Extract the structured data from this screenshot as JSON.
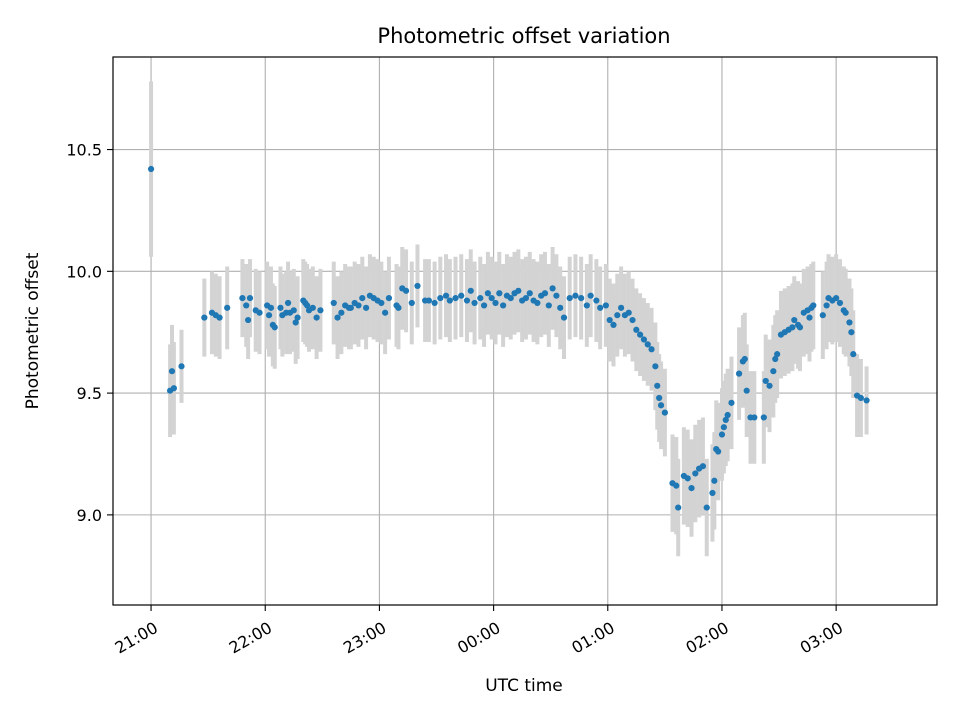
{
  "chart_data": {
    "type": "scatter",
    "title": "Photometric offset variation",
    "xlabel": "UTC time",
    "ylabel": "Photometric offset",
    "x_unit": "UTC time (HH:MM)",
    "xlim": [
      "20:40",
      "03:53"
    ],
    "ylim": [
      8.63,
      10.88
    ],
    "x_ticks": [
      "21:00",
      "22:00",
      "23:00",
      "00:00",
      "01:00",
      "02:00",
      "03:00"
    ],
    "y_ticks": [
      "9.0",
      "9.5",
      "10.0",
      "10.5"
    ],
    "grid": true,
    "error_bars": true,
    "colors": {
      "points": "#1f77b4",
      "error_bars": "#d3d3d3",
      "grid": "#b0b0b0"
    },
    "series": [
      {
        "points": [
          {
            "t": "21:00",
            "y": 10.42,
            "err": 0.36
          },
          {
            "t": "21:10",
            "y": 9.51,
            "err": 0.19
          },
          {
            "t": "21:11",
            "y": 9.59,
            "err": 0.19
          },
          {
            "t": "21:12",
            "y": 9.52,
            "err": 0.19
          },
          {
            "t": "21:16",
            "y": 9.61,
            "err": 0.15
          },
          {
            "t": "21:28",
            "y": 9.81,
            "err": 0.16
          },
          {
            "t": "21:32",
            "y": 9.83,
            "err": 0.17
          },
          {
            "t": "21:34",
            "y": 9.82,
            "err": 0.17
          },
          {
            "t": "21:36",
            "y": 9.81,
            "err": 0.17
          },
          {
            "t": "21:40",
            "y": 9.85,
            "err": 0.17
          },
          {
            "t": "21:48",
            "y": 9.89,
            "err": 0.16
          },
          {
            "t": "21:50",
            "y": 9.86,
            "err": 0.17
          },
          {
            "t": "21:51",
            "y": 9.8,
            "err": 0.16
          },
          {
            "t": "21:52",
            "y": 9.89,
            "err": 0.16
          },
          {
            "t": "21:55",
            "y": 9.84,
            "err": 0.17
          },
          {
            "t": "21:57",
            "y": 9.83,
            "err": 0.17
          },
          {
            "t": "22:01",
            "y": 9.86,
            "err": 0.18
          },
          {
            "t": "22:02",
            "y": 9.82,
            "err": 0.17
          },
          {
            "t": "22:03",
            "y": 9.85,
            "err": 0.17
          },
          {
            "t": "22:04",
            "y": 9.78,
            "err": 0.17
          },
          {
            "t": "22:05",
            "y": 9.77,
            "err": 0.17
          },
          {
            "t": "22:08",
            "y": 9.85,
            "err": 0.17
          },
          {
            "t": "22:09",
            "y": 9.82,
            "err": 0.17
          },
          {
            "t": "22:11",
            "y": 9.83,
            "err": 0.17
          },
          {
            "t": "22:12",
            "y": 9.87,
            "err": 0.17
          },
          {
            "t": "22:13",
            "y": 9.83,
            "err": 0.17
          },
          {
            "t": "22:15",
            "y": 9.84,
            "err": 0.17
          },
          {
            "t": "22:16",
            "y": 9.79,
            "err": 0.17
          },
          {
            "t": "22:17",
            "y": 9.81,
            "err": 0.17
          },
          {
            "t": "22:20",
            "y": 9.88,
            "err": 0.17
          },
          {
            "t": "22:21",
            "y": 9.87,
            "err": 0.17
          },
          {
            "t": "22:22",
            "y": 9.86,
            "err": 0.17
          },
          {
            "t": "22:23",
            "y": 9.84,
            "err": 0.17
          },
          {
            "t": "22:25",
            "y": 9.85,
            "err": 0.17
          },
          {
            "t": "22:27",
            "y": 9.81,
            "err": 0.17
          },
          {
            "t": "22:29",
            "y": 9.84,
            "err": 0.17
          },
          {
            "t": "22:36",
            "y": 9.87,
            "err": 0.17
          },
          {
            "t": "22:38",
            "y": 9.81,
            "err": 0.17
          },
          {
            "t": "22:40",
            "y": 9.83,
            "err": 0.17
          },
          {
            "t": "22:42",
            "y": 9.86,
            "err": 0.17
          },
          {
            "t": "22:44",
            "y": 9.85,
            "err": 0.17
          },
          {
            "t": "22:45",
            "y": 9.85,
            "err": 0.17
          },
          {
            "t": "22:47",
            "y": 9.87,
            "err": 0.17
          },
          {
            "t": "22:49",
            "y": 9.86,
            "err": 0.17
          },
          {
            "t": "22:51",
            "y": 9.89,
            "err": 0.17
          },
          {
            "t": "22:53",
            "y": 9.85,
            "err": 0.17
          },
          {
            "t": "22:55",
            "y": 9.9,
            "err": 0.17
          },
          {
            "t": "22:57",
            "y": 9.89,
            "err": 0.17
          },
          {
            "t": "22:59",
            "y": 9.88,
            "err": 0.17
          },
          {
            "t": "23:01",
            "y": 9.87,
            "err": 0.17
          },
          {
            "t": "23:03",
            "y": 9.83,
            "err": 0.17
          },
          {
            "t": "23:05",
            "y": 9.89,
            "err": 0.17
          },
          {
            "t": "23:09",
            "y": 9.86,
            "err": 0.17
          },
          {
            "t": "23:10",
            "y": 9.85,
            "err": 0.17
          },
          {
            "t": "23:12",
            "y": 9.93,
            "err": 0.17
          },
          {
            "t": "23:14",
            "y": 9.92,
            "err": 0.17
          },
          {
            "t": "23:17",
            "y": 9.87,
            "err": 0.17
          },
          {
            "t": "23:20",
            "y": 9.94,
            "err": 0.17
          },
          {
            "t": "23:24",
            "y": 9.88,
            "err": 0.17
          },
          {
            "t": "23:26",
            "y": 9.88,
            "err": 0.17
          },
          {
            "t": "23:29",
            "y": 9.87,
            "err": 0.17
          },
          {
            "t": "23:32",
            "y": 9.89,
            "err": 0.17
          },
          {
            "t": "23:35",
            "y": 9.9,
            "err": 0.17
          },
          {
            "t": "23:37",
            "y": 9.88,
            "err": 0.17
          },
          {
            "t": "23:40",
            "y": 9.89,
            "err": 0.17
          },
          {
            "t": "23:43",
            "y": 9.9,
            "err": 0.17
          },
          {
            "t": "23:46",
            "y": 9.88,
            "err": 0.17
          },
          {
            "t": "23:48",
            "y": 9.92,
            "err": 0.17
          },
          {
            "t": "23:50",
            "y": 9.87,
            "err": 0.17
          },
          {
            "t": "23:53",
            "y": 9.89,
            "err": 0.17
          },
          {
            "t": "23:55",
            "y": 9.86,
            "err": 0.17
          },
          {
            "t": "23:57",
            "y": 9.91,
            "err": 0.17
          },
          {
            "t": "23:59",
            "y": 9.89,
            "err": 0.17
          },
          {
            "t": "00:01",
            "y": 9.87,
            "err": 0.17
          },
          {
            "t": "00:03",
            "y": 9.91,
            "err": 0.17
          },
          {
            "t": "00:05",
            "y": 9.86,
            "err": 0.17
          },
          {
            "t": "00:07",
            "y": 9.9,
            "err": 0.17
          },
          {
            "t": "00:09",
            "y": 9.89,
            "err": 0.17
          },
          {
            "t": "00:11",
            "y": 9.91,
            "err": 0.17
          },
          {
            "t": "00:13",
            "y": 9.92,
            "err": 0.17
          },
          {
            "t": "00:15",
            "y": 9.88,
            "err": 0.17
          },
          {
            "t": "00:17",
            "y": 9.89,
            "err": 0.17
          },
          {
            "t": "00:19",
            "y": 9.91,
            "err": 0.17
          },
          {
            "t": "00:21",
            "y": 9.88,
            "err": 0.17
          },
          {
            "t": "00:23",
            "y": 9.87,
            "err": 0.17
          },
          {
            "t": "00:25",
            "y": 9.9,
            "err": 0.17
          },
          {
            "t": "00:27",
            "y": 9.91,
            "err": 0.17
          },
          {
            "t": "00:29",
            "y": 9.86,
            "err": 0.17
          },
          {
            "t": "00:31",
            "y": 9.93,
            "err": 0.17
          },
          {
            "t": "00:33",
            "y": 9.9,
            "err": 0.17
          },
          {
            "t": "00:35",
            "y": 9.85,
            "err": 0.17
          },
          {
            "t": "00:37",
            "y": 9.81,
            "err": 0.17
          },
          {
            "t": "00:40",
            "y": 9.89,
            "err": 0.17
          },
          {
            "t": "00:43",
            "y": 9.9,
            "err": 0.17
          },
          {
            "t": "00:46",
            "y": 9.89,
            "err": 0.17
          },
          {
            "t": "00:49",
            "y": 9.86,
            "err": 0.17
          },
          {
            "t": "00:51",
            "y": 9.9,
            "err": 0.17
          },
          {
            "t": "00:54",
            "y": 9.88,
            "err": 0.17
          },
          {
            "t": "00:56",
            "y": 9.85,
            "err": 0.17
          },
          {
            "t": "00:59",
            "y": 9.86,
            "err": 0.17
          },
          {
            "t": "01:01",
            "y": 9.8,
            "err": 0.17
          },
          {
            "t": "01:03",
            "y": 9.78,
            "err": 0.17
          },
          {
            "t": "01:05",
            "y": 9.82,
            "err": 0.17
          },
          {
            "t": "01:07",
            "y": 9.85,
            "err": 0.17
          },
          {
            "t": "01:09",
            "y": 9.82,
            "err": 0.17
          },
          {
            "t": "01:11",
            "y": 9.83,
            "err": 0.17
          },
          {
            "t": "01:13",
            "y": 9.8,
            "err": 0.17
          },
          {
            "t": "01:15",
            "y": 9.76,
            "err": 0.17
          },
          {
            "t": "01:17",
            "y": 9.74,
            "err": 0.17
          },
          {
            "t": "01:19",
            "y": 9.72,
            "err": 0.17
          },
          {
            "t": "01:21",
            "y": 9.7,
            "err": 0.17
          },
          {
            "t": "01:23",
            "y": 9.68,
            "err": 0.17
          },
          {
            "t": "01:25",
            "y": 9.61,
            "err": 0.18
          },
          {
            "t": "01:26",
            "y": 9.53,
            "err": 0.18
          },
          {
            "t": "01:27",
            "y": 9.48,
            "err": 0.18
          },
          {
            "t": "01:28",
            "y": 9.45,
            "err": 0.18
          },
          {
            "t": "01:30",
            "y": 9.42,
            "err": 0.18
          },
          {
            "t": "01:34",
            "y": 9.13,
            "err": 0.2
          },
          {
            "t": "01:36",
            "y": 9.12,
            "err": 0.2
          },
          {
            "t": "01:37",
            "y": 9.03,
            "err": 0.2
          },
          {
            "t": "01:40",
            "y": 9.16,
            "err": 0.2
          },
          {
            "t": "01:42",
            "y": 9.15,
            "err": 0.2
          },
          {
            "t": "01:44",
            "y": 9.11,
            "err": 0.2
          },
          {
            "t": "01:46",
            "y": 9.17,
            "err": 0.2
          },
          {
            "t": "01:48",
            "y": 9.19,
            "err": 0.2
          },
          {
            "t": "01:50",
            "y": 9.2,
            "err": 0.2
          },
          {
            "t": "01:52",
            "y": 9.03,
            "err": 0.2
          },
          {
            "t": "01:55",
            "y": 9.09,
            "err": 0.2
          },
          {
            "t": "01:56",
            "y": 9.14,
            "err": 0.2
          },
          {
            "t": "01:57",
            "y": 9.27,
            "err": 0.2
          },
          {
            "t": "01:58",
            "y": 9.26,
            "err": 0.2
          },
          {
            "t": "02:00",
            "y": 9.33,
            "err": 0.19
          },
          {
            "t": "02:01",
            "y": 9.36,
            "err": 0.19
          },
          {
            "t": "02:02",
            "y": 9.39,
            "err": 0.19
          },
          {
            "t": "02:03",
            "y": 9.41,
            "err": 0.19
          },
          {
            "t": "02:05",
            "y": 9.46,
            "err": 0.19
          },
          {
            "t": "02:09",
            "y": 9.58,
            "err": 0.19
          },
          {
            "t": "02:11",
            "y": 9.63,
            "err": 0.19
          },
          {
            "t": "02:12",
            "y": 9.64,
            "err": 0.19
          },
          {
            "t": "02:13",
            "y": 9.51,
            "err": 0.19
          },
          {
            "t": "02:15",
            "y": 9.4,
            "err": 0.19
          },
          {
            "t": "02:17",
            "y": 9.4,
            "err": 0.19
          },
          {
            "t": "02:22",
            "y": 9.4,
            "err": 0.19
          },
          {
            "t": "02:23",
            "y": 9.55,
            "err": 0.19
          },
          {
            "t": "02:25",
            "y": 9.53,
            "err": 0.19
          },
          {
            "t": "02:27",
            "y": 9.59,
            "err": 0.19
          },
          {
            "t": "02:28",
            "y": 9.64,
            "err": 0.18
          },
          {
            "t": "02:29",
            "y": 9.66,
            "err": 0.18
          },
          {
            "t": "02:31",
            "y": 9.74,
            "err": 0.18
          },
          {
            "t": "02:33",
            "y": 9.75,
            "err": 0.18
          },
          {
            "t": "02:35",
            "y": 9.76,
            "err": 0.18
          },
          {
            "t": "02:37",
            "y": 9.77,
            "err": 0.18
          },
          {
            "t": "02:38",
            "y": 9.8,
            "err": 0.18
          },
          {
            "t": "02:40",
            "y": 9.78,
            "err": 0.18
          },
          {
            "t": "02:41",
            "y": 9.77,
            "err": 0.18
          },
          {
            "t": "02:43",
            "y": 9.83,
            "err": 0.18
          },
          {
            "t": "02:45",
            "y": 9.84,
            "err": 0.18
          },
          {
            "t": "02:46",
            "y": 9.81,
            "err": 0.18
          },
          {
            "t": "02:47",
            "y": 9.85,
            "err": 0.18
          },
          {
            "t": "02:48",
            "y": 9.86,
            "err": 0.18
          },
          {
            "t": "02:53",
            "y": 9.82,
            "err": 0.18
          },
          {
            "t": "02:55",
            "y": 9.86,
            "err": 0.18
          },
          {
            "t": "02:56",
            "y": 9.89,
            "err": 0.18
          },
          {
            "t": "02:58",
            "y": 9.88,
            "err": 0.18
          },
          {
            "t": "03:00",
            "y": 9.89,
            "err": 0.18
          },
          {
            "t": "03:02",
            "y": 9.87,
            "err": 0.18
          },
          {
            "t": "03:04",
            "y": 9.84,
            "err": 0.18
          },
          {
            "t": "03:05",
            "y": 9.83,
            "err": 0.18
          },
          {
            "t": "03:07",
            "y": 9.79,
            "err": 0.18
          },
          {
            "t": "03:08",
            "y": 9.75,
            "err": 0.18
          },
          {
            "t": "03:09",
            "y": 9.66,
            "err": 0.18
          },
          {
            "t": "03:11",
            "y": 9.49,
            "err": 0.17
          },
          {
            "t": "03:13",
            "y": 9.48,
            "err": 0.16
          },
          {
            "t": "03:16",
            "y": 9.47,
            "err": 0.14
          }
        ]
      }
    ]
  }
}
